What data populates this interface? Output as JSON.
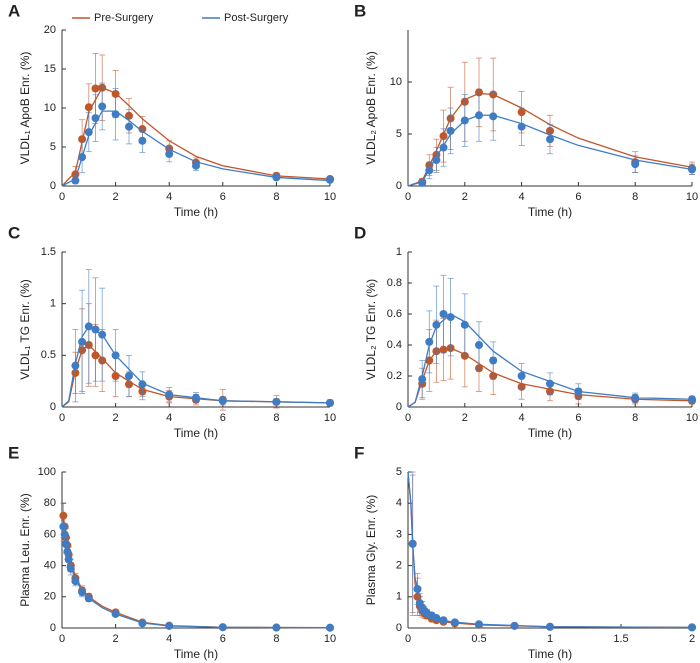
{
  "chart_data": [
    {
      "type": "line",
      "panel": "A",
      "x_label": "Time (h)",
      "y_label": "VLDL₁ ApoB Enr. (%)",
      "legend": "top-left",
      "xlim": [
        0,
        10
      ],
      "xticks": [
        0,
        2,
        4,
        6,
        8,
        10
      ],
      "ylim": [
        0,
        20
      ],
      "yticks": [
        0,
        5,
        10,
        15,
        20
      ],
      "x": [
        0.5,
        0.75,
        1,
        1.25,
        1.5,
        2,
        2.5,
        3,
        4,
        5,
        8,
        10
      ],
      "fit_x": [
        0,
        0.5,
        1,
        1.5,
        2,
        2.5,
        3,
        4,
        5,
        6,
        8,
        10
      ],
      "series": [
        {
          "name": "Pre-Surgery",
          "color": "#c0572b",
          "values": [
            1.5,
            6,
            10.1,
            12.5,
            12.6,
            11.8,
            9,
            7.3,
            4.8,
            3,
            1.3,
            0.9
          ],
          "errors": [
            1,
            2.5,
            3,
            4.5,
            4.2,
            3,
            2.2,
            1.6,
            1,
            0.6,
            0.4,
            0.3
          ],
          "fit": [
            0,
            1.8,
            9.5,
            12.6,
            11.9,
            10.3,
            8.6,
            5.8,
            3.8,
            2.6,
            1.3,
            0.9
          ]
        },
        {
          "name": "Post-Surgery",
          "color": "#3f7cc4",
          "values": [
            0.7,
            3.7,
            6.9,
            8.7,
            10.2,
            9.2,
            7.6,
            5.8,
            4.1,
            2.6,
            1.1,
            0.8
          ],
          "errors": [
            0.4,
            2,
            2.5,
            3,
            3,
            3.3,
            2.2,
            1.5,
            1,
            0.6,
            0.3,
            0.3
          ],
          "fit": [
            0,
            0.9,
            6.5,
            9.6,
            9.6,
            8.4,
            7,
            4.7,
            3.1,
            2.2,
            1.1,
            0.7
          ]
        }
      ]
    },
    {
      "type": "line",
      "panel": "B",
      "x_label": "Time (h)",
      "y_label": "VLDL₂ ApoB Enr. (%)",
      "xlim": [
        0,
        10
      ],
      "xticks": [
        0,
        2,
        4,
        6,
        8,
        10
      ],
      "ylim": [
        0,
        15
      ],
      "yticks": [
        0,
        5,
        10
      ],
      "x": [
        0.5,
        0.75,
        1,
        1.25,
        1.5,
        2,
        2.5,
        3,
        4,
        5,
        8,
        10
      ],
      "fit_x": [
        0,
        0.5,
        1,
        1.5,
        2,
        2.5,
        3,
        4,
        5,
        6,
        8,
        10
      ],
      "series": [
        {
          "color": "#c0572b",
          "values": [
            0.4,
            2,
            3,
            4.8,
            6.5,
            8.1,
            9,
            8.8,
            7.1,
            5.3,
            2.3,
            1.7
          ],
          "errors": [
            0.3,
            1,
            1.5,
            2.5,
            3,
            3.8,
            3.3,
            3.5,
            2,
            1.5,
            1,
            0.6
          ],
          "fit": [
            0,
            0.5,
            3.4,
            6.5,
            8.3,
            8.9,
            8.8,
            7.5,
            5.9,
            4.6,
            2.8,
            1.8
          ]
        },
        {
          "color": "#3f7cc4",
          "values": [
            0.3,
            1.5,
            2.5,
            3.7,
            5.3,
            6.3,
            6.8,
            6.7,
            5.7,
            4.5,
            2.1,
            1.6
          ],
          "errors": [
            0.2,
            0.8,
            1.2,
            1.8,
            2.2,
            2.5,
            2.5,
            2.3,
            1.8,
            1.4,
            0.8,
            0.5
          ],
          "fit": [
            0,
            0.4,
            2.8,
            5,
            6.3,
            6.8,
            6.8,
            6,
            4.9,
            3.9,
            2.5,
            1.6
          ]
        }
      ]
    },
    {
      "type": "line",
      "panel": "C",
      "x_label": "Time (h)",
      "y_label": "VLDL₁ TG Enr. (%)",
      "xlim": [
        0,
        10
      ],
      "xticks": [
        0,
        2,
        4,
        6,
        8,
        10
      ],
      "ylim": [
        0,
        1.5
      ],
      "yticks": [
        0,
        0.5,
        1,
        1.5
      ],
      "x": [
        0.5,
        0.75,
        1,
        1.25,
        1.5,
        2,
        2.5,
        3,
        4,
        5,
        6,
        8,
        10
      ],
      "fit_x": [
        0,
        0.25,
        0.5,
        0.75,
        1,
        1.5,
        2,
        3,
        4,
        6,
        8,
        10
      ],
      "series": [
        {
          "color": "#c0572b",
          "values": [
            0.33,
            0.55,
            0.6,
            0.5,
            0.45,
            0.3,
            0.22,
            0.15,
            0.1,
            0.07,
            0.07,
            0.05,
            0.04
          ],
          "errors": [
            0.2,
            0.4,
            0.4,
            0.3,
            0.3,
            0.2,
            0.12,
            0.08,
            0.06,
            0.05,
            0.1,
            0.06,
            0.03
          ],
          "fit": [
            0,
            0.05,
            0.35,
            0.55,
            0.6,
            0.47,
            0.33,
            0.17,
            0.1,
            0.06,
            0.05,
            0.04
          ]
        },
        {
          "color": "#3f7cc4",
          "values": [
            0.4,
            0.63,
            0.78,
            0.75,
            0.7,
            0.5,
            0.3,
            0.22,
            0.12,
            0.09,
            0.06,
            0.05,
            0.04
          ],
          "errors": [
            0.35,
            0.5,
            0.55,
            0.5,
            0.45,
            0.25,
            0.2,
            0.12,
            0.07,
            0.05,
            0.04,
            0.03,
            0.02
          ],
          "fit": [
            0,
            0.06,
            0.42,
            0.68,
            0.78,
            0.7,
            0.5,
            0.23,
            0.12,
            0.06,
            0.05,
            0.04
          ]
        }
      ]
    },
    {
      "type": "line",
      "panel": "D",
      "x_label": "Time (h)",
      "y_label": "VLDL₂ TG Enr. (%)",
      "xlim": [
        0,
        10
      ],
      "xticks": [
        0,
        2,
        4,
        6,
        8,
        10
      ],
      "ylim": [
        0,
        1
      ],
      "yticks": [
        0,
        0.2,
        0.4,
        0.6,
        0.8,
        1
      ],
      "x": [
        0.5,
        0.75,
        1,
        1.25,
        1.5,
        2,
        2.5,
        3,
        4,
        5,
        6,
        8,
        10
      ],
      "fit_x": [
        0,
        0.25,
        0.5,
        0.75,
        1,
        1.5,
        2,
        3,
        4,
        6,
        8,
        10
      ],
      "series": [
        {
          "color": "#c0572b",
          "values": [
            0.15,
            0.3,
            0.36,
            0.37,
            0.38,
            0.33,
            0.25,
            0.2,
            0.13,
            0.1,
            0.07,
            0.05,
            0.04
          ],
          "errors": [
            0.1,
            0.2,
            0.2,
            0.2,
            0.2,
            0.2,
            0.15,
            0.12,
            0.08,
            0.06,
            0.05,
            0.03,
            0.02
          ],
          "fit": [
            0,
            0.03,
            0.17,
            0.3,
            0.36,
            0.38,
            0.34,
            0.22,
            0.15,
            0.08,
            0.05,
            0.04
          ]
        },
        {
          "color": "#3f7cc4",
          "values": [
            0.18,
            0.42,
            0.53,
            0.6,
            0.58,
            0.53,
            0.4,
            0.3,
            0.2,
            0.15,
            0.1,
            0.06,
            0.05
          ],
          "errors": [
            0.12,
            0.2,
            0.25,
            0.25,
            0.25,
            0.2,
            0.15,
            0.12,
            0.08,
            0.07,
            0.05,
            0.03,
            0.02
          ],
          "fit": [
            0,
            0.03,
            0.2,
            0.4,
            0.52,
            0.6,
            0.55,
            0.36,
            0.23,
            0.1,
            0.06,
            0.05
          ]
        }
      ]
    },
    {
      "type": "line",
      "panel": "E",
      "x_label": "Time (h)",
      "y_label": "Plasma Leu. Enr. (%)",
      "xlim": [
        0,
        10
      ],
      "xticks": [
        0,
        2,
        4,
        6,
        8,
        10
      ],
      "ylim": [
        0,
        100
      ],
      "yticks": [
        0,
        20,
        40,
        60,
        80,
        100
      ],
      "x": [
        0.05,
        0.1,
        0.15,
        0.2,
        0.25,
        0.33,
        0.5,
        0.75,
        1,
        2,
        3,
        4,
        6,
        8,
        10
      ],
      "fit_x": [
        0,
        0.1,
        0.25,
        0.5,
        0.75,
        1,
        1.5,
        2,
        3,
        4,
        6,
        8,
        10
      ],
      "series": [
        {
          "color": "#c0572b",
          "values": [
            72,
            65,
            58,
            53,
            47,
            40,
            32,
            24,
            20,
            10,
            3.5,
            1.5,
            0.5,
            0.3,
            0.2
          ],
          "errors": [
            8,
            7,
            6,
            5,
            5,
            4,
            3,
            3,
            2,
            1.5,
            1,
            0.5,
            0.3,
            0.2,
            0.1
          ],
          "fit": [
            75,
            64,
            48,
            33,
            25,
            20,
            14,
            10,
            3.7,
            1.5,
            0.5,
            0.3,
            0.2
          ]
        },
        {
          "color": "#3f7cc4",
          "values": [
            65,
            60,
            54,
            49,
            44,
            38,
            30,
            23,
            19,
            9,
            3,
            1.3,
            0.5,
            0.3,
            0.2
          ],
          "errors": [
            7,
            6,
            6,
            5,
            5,
            4,
            3,
            3,
            2,
            1.5,
            1,
            0.5,
            0.3,
            0.2,
            0.1
          ],
          "fit": [
            68,
            59,
            45,
            31,
            24,
            19,
            13,
            9,
            3.2,
            1.3,
            0.5,
            0.3,
            0.2
          ]
        }
      ]
    },
    {
      "type": "line",
      "panel": "F",
      "x_label": "Time (h)",
      "y_label": "Plasma Gly. Enr. (%)",
      "xlim": [
        0,
        2
      ],
      "xticks": [
        0,
        0.5,
        1,
        1.5,
        2
      ],
      "ylim": [
        0,
        5
      ],
      "yticks": [
        0,
        1,
        2,
        3,
        4,
        5
      ],
      "x": [
        0.033,
        0.067,
        0.083,
        0.1,
        0.117,
        0.133,
        0.167,
        0.2,
        0.25,
        0.33,
        0.5,
        0.75,
        1,
        2
      ],
      "fit_x": [
        0,
        0.02,
        0.033,
        0.05,
        0.1,
        0.2,
        0.3,
        0.5,
        1,
        2
      ],
      "series": [
        {
          "color": "#c0572b",
          "values": [
            2.7,
            1,
            0.7,
            0.55,
            0.45,
            0.4,
            0.3,
            0.25,
            0.2,
            0.15,
            0.1,
            0.07,
            0.04,
            0.02
          ],
          "errors": [
            2.2,
            0.6,
            0.3,
            0.2,
            0.15,
            0.1,
            0.1,
            0.08,
            0.06,
            0.05,
            0.03,
            0.02,
            0.02,
            0.01
          ],
          "fit": [
            5,
            4,
            2.7,
            1.4,
            0.55,
            0.25,
            0.17,
            0.1,
            0.04,
            0.02
          ]
        },
        {
          "color": "#3f7cc4",
          "values": [
            2.7,
            1.25,
            0.8,
            0.65,
            0.55,
            0.48,
            0.4,
            0.32,
            0.25,
            0.18,
            0.12,
            0.07,
            0.04,
            0.02
          ],
          "errors": [
            2.3,
            0.5,
            0.3,
            0.2,
            0.15,
            0.12,
            0.1,
            0.08,
            0.06,
            0.05,
            0.03,
            0.02,
            0.02,
            0.01
          ],
          "fit": [
            5,
            4,
            2.7,
            1.6,
            0.65,
            0.32,
            0.2,
            0.12,
            0.04,
            0.02
          ]
        }
      ]
    }
  ]
}
